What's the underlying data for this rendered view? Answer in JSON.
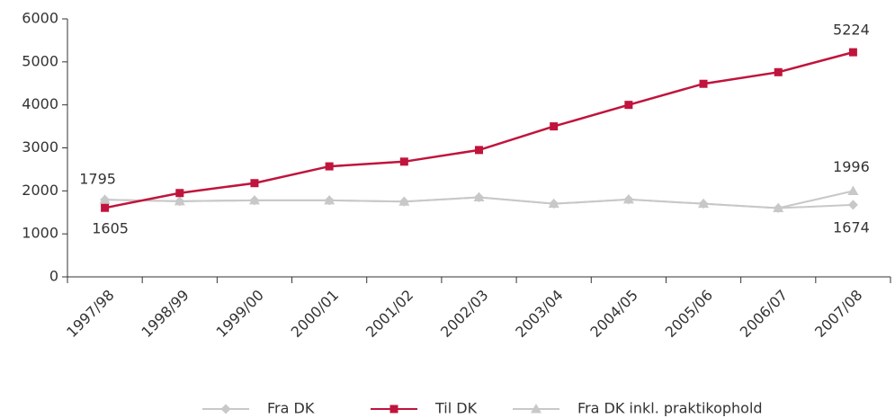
{
  "chart_data": {
    "type": "line",
    "categories": [
      "1997/98",
      "1998/99",
      "1999/00",
      "2000/01",
      "2001/02",
      "2002/03",
      "2003/04",
      "2004/05",
      "2005/06",
      "2006/07",
      "2007/08"
    ],
    "series": [
      {
        "name": "Fra DK",
        "color": "#c8c8c8",
        "marker": "diamond",
        "values": [
          1795,
          1760,
          1780,
          1780,
          1750,
          1850,
          1700,
          1800,
          1700,
          1600,
          1674
        ]
      },
      {
        "name": "Til DK",
        "color": "#c0143c",
        "marker": "square",
        "values": [
          1605,
          1950,
          2180,
          2570,
          2680,
          2950,
          3500,
          4000,
          4490,
          4760,
          5224
        ]
      },
      {
        "name": "Fra DK inkl. praktikophold",
        "color": "#c8c8c8",
        "marker": "triangle",
        "values": [
          1795,
          1760,
          1780,
          1780,
          1750,
          1850,
          1700,
          1800,
          1700,
          1600,
          1996
        ]
      }
    ],
    "ylim": [
      0,
      6000
    ],
    "yticks": [
      0,
      1000,
      2000,
      3000,
      4000,
      5000,
      6000
    ],
    "grid": false
  }
}
